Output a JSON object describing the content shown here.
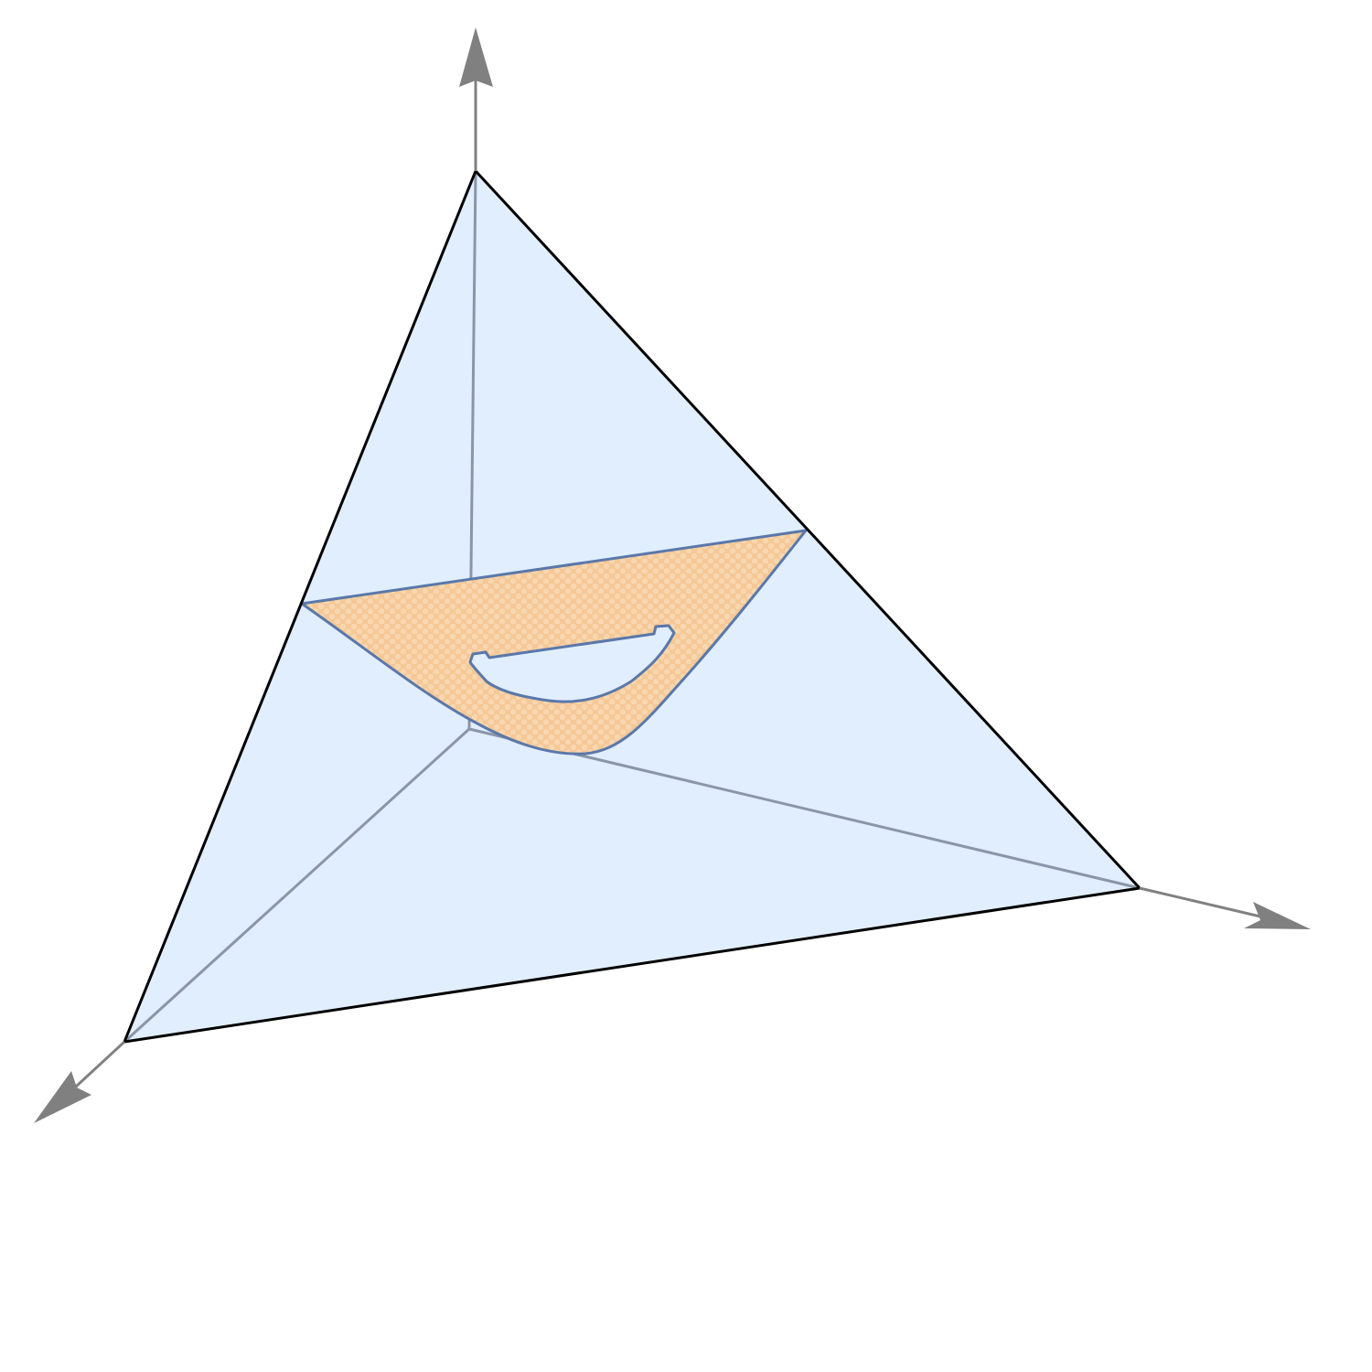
{
  "diagram": {
    "kind": "3d-simplex-with-shaded-region",
    "axes": [
      "x-axis",
      "y-axis",
      "z-axis"
    ],
    "colors": {
      "background": "#ffffff",
      "axis": "#808080",
      "hidden_edge": "#8a96a8",
      "simplex_fill": "#e1eefd",
      "simplex_edge": "#000000",
      "region_fill": "#f5c896",
      "region_dot": "#f8d7b0",
      "region_edge": "#5a78aa",
      "hole_fill": "#ffffff"
    }
  }
}
